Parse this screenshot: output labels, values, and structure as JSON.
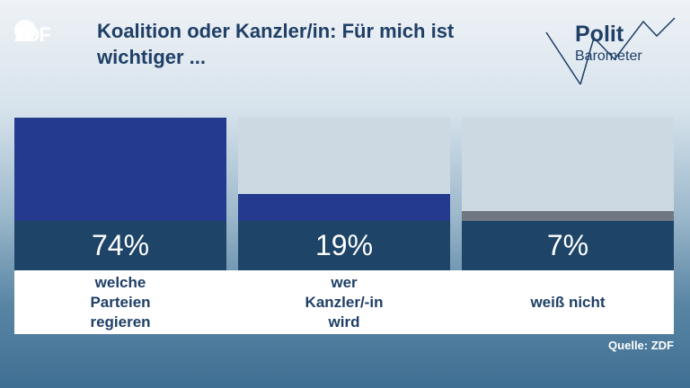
{
  "header": {
    "logo_text": "ZDF",
    "title": "Koalition oder Kanzler/in: Für mich ist wichtiger ...",
    "brand_line1": "Polit",
    "brand_line2": "Barometer"
  },
  "chart_data": {
    "type": "bar",
    "title": "Koalition oder Kanzler/in: Für mich ist wichtiger ...",
    "categories": [
      "welche\nParteien\nregieren",
      "wer\nKanzler/-in\nwird",
      "weiß nicht"
    ],
    "values": [
      74,
      19,
      7
    ],
    "value_labels": [
      "74%",
      "19%",
      "7%"
    ],
    "colors": [
      "#233a8e",
      "#233a8e",
      "#707780"
    ],
    "ylim": [
      0,
      100
    ],
    "unit": "%"
  },
  "footer": {
    "source": "Quelle: ZDF"
  }
}
